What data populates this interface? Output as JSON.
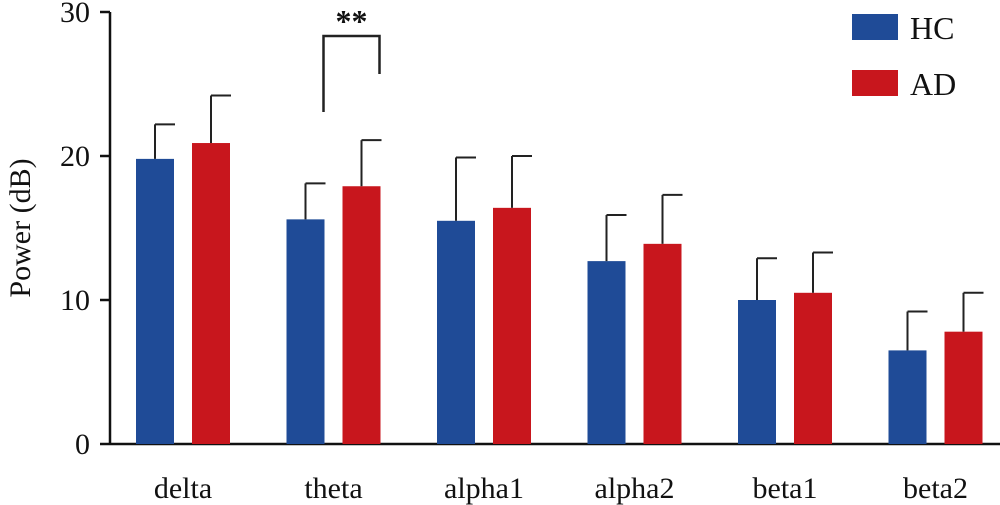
{
  "chart_data": {
    "type": "bar",
    "categories": [
      "delta",
      "theta",
      "alpha1",
      "alpha2",
      "beta1",
      "beta2"
    ],
    "series": [
      {
        "name": "HC",
        "color": "#1f4b97",
        "values": [
          19.8,
          15.6,
          15.5,
          12.7,
          10.0,
          6.5
        ],
        "errors": [
          2.4,
          2.5,
          4.4,
          3.2,
          2.9,
          2.7
        ]
      },
      {
        "name": "AD",
        "color": "#c8161d",
        "values": [
          20.9,
          17.9,
          16.4,
          13.9,
          10.5,
          7.8
        ],
        "errors": [
          3.3,
          3.2,
          3.6,
          3.4,
          2.8,
          2.7
        ]
      }
    ],
    "ylabel": "Power (dB)",
    "xlabel": "",
    "ylim": [
      0,
      30
    ],
    "yticks": [
      "0",
      "10",
      "20",
      "30"
    ],
    "legend": {
      "position": "top-right",
      "entries": [
        "HC",
        "AD"
      ]
    },
    "annotations": [
      {
        "text": "**",
        "category": "theta",
        "type": "significance-bracket"
      }
    ],
    "grid": false
  }
}
